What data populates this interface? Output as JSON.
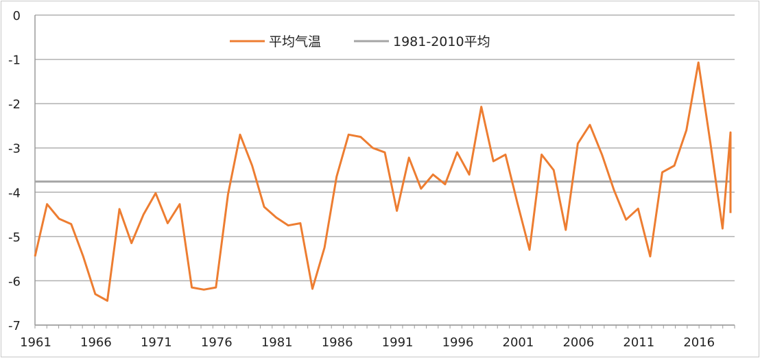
{
  "chart_data": {
    "type": "line",
    "title": "",
    "xlabel": "",
    "ylabel": "",
    "ylim": [
      -7,
      0
    ],
    "xlim": [
      1961,
      2019
    ],
    "y_ticks": [
      "0",
      "-1",
      "-2",
      "-3",
      "-4",
      "-5",
      "-6",
      "-7"
    ],
    "x_ticks": [
      "1961",
      "1966",
      "1971",
      "1976",
      "1981",
      "1986",
      "1991",
      "1996",
      "2001",
      "2006",
      "2011",
      "2016"
    ],
    "grid": true,
    "legend_position": "top-center",
    "series": [
      {
        "name": "平均气温",
        "color": "#ed7d31",
        "x": [
          1961,
          1962,
          1963,
          1964,
          1965,
          1966,
          1967,
          1968,
          1969,
          1970,
          1971,
          1972,
          1973,
          1974,
          1975,
          1976,
          1977,
          1978,
          1979,
          1980,
          1981,
          1982,
          1983,
          1984,
          1985,
          1986,
          1987,
          1988,
          1989,
          1990,
          1991,
          1992,
          1993,
          1994,
          1995,
          1996,
          1997,
          1998,
          1999,
          2000,
          2001,
          2002,
          2003,
          2004,
          2005,
          2006,
          2007,
          2008,
          2009,
          2010,
          2011,
          2012,
          2013,
          2014,
          2015,
          2016,
          2017,
          2018,
          2019,
          2020
        ],
        "values": [
          -5.45,
          -4.27,
          -4.6,
          -4.72,
          -5.45,
          -6.3,
          -6.45,
          -4.38,
          -5.15,
          -4.5,
          -4.02,
          -4.7,
          -4.27,
          -6.15,
          -6.2,
          -6.15,
          -4.05,
          -2.7,
          -3.4,
          -4.33,
          -4.57,
          -4.75,
          -4.7,
          -6.18,
          -5.25,
          -3.65,
          -2.7,
          -2.75,
          -3.0,
          -3.1,
          -4.42,
          -3.22,
          -3.92,
          -3.6,
          -3.82,
          -3.1,
          -3.6,
          -2.07,
          -3.3,
          -3.15,
          -4.25,
          -5.3,
          -3.15,
          -3.5,
          -4.85,
          -2.9,
          -2.48,
          -3.15,
          -3.95,
          -4.62,
          -4.37,
          -5.45,
          -3.55,
          -3.4,
          -2.6,
          -1.07,
          -2.9,
          -4.82,
          -2.65,
          -4.47
        ]
      },
      {
        "name": "1981-2010平均",
        "color": "#a5a5a5",
        "x": [
          1961,
          2020
        ],
        "values": [
          -3.76,
          -3.76
        ]
      }
    ]
  }
}
